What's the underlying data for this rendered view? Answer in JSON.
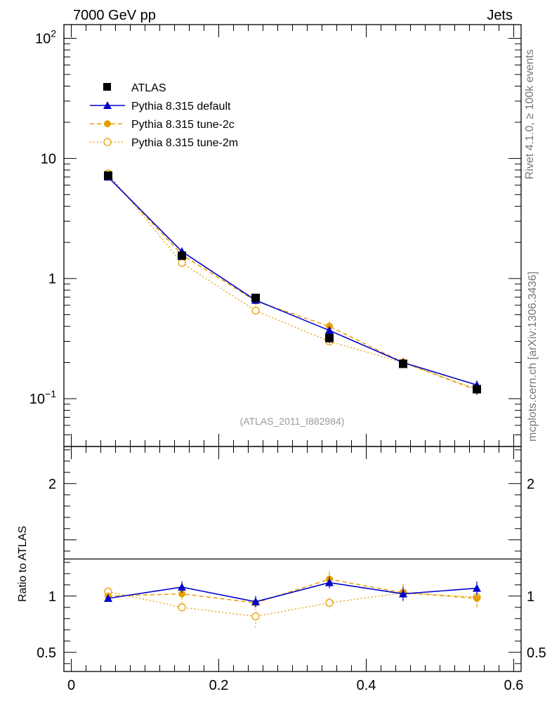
{
  "header": {
    "left_title": "7000 GeV pp",
    "right_title": "Jets"
  },
  "side_labels": {
    "rivet": "Rivet 4.1.0, ≥ 100k events",
    "source": "mcplots.cern.ch [arXiv:1306.3436]"
  },
  "analysis_label": "(ATLAS_2011_I882984)",
  "colors": {
    "atlas": "#000000",
    "default": "#0000cc",
    "tune2c": "#e69f00",
    "tune2m": "#e69f00"
  },
  "chart_data": [
    {
      "type": "line",
      "yscale": "log",
      "xlim": [
        -0.01,
        0.61
      ],
      "ylim": [
        0.04,
        130
      ],
      "yticks": [
        {
          "value": 100,
          "label": "10",
          "sup": "2"
        },
        {
          "value": 10,
          "label": "10",
          "sup": ""
        },
        {
          "value": 1,
          "label": "1",
          "sup": ""
        },
        {
          "value": 0.1,
          "label": "10",
          "sup": "−1"
        }
      ],
      "x": [
        0.05,
        0.15,
        0.25,
        0.35,
        0.45,
        0.55
      ],
      "series": [
        {
          "key": "atlas",
          "name": "ATLAS",
          "values": [
            7.2,
            1.55,
            0.69,
            0.32,
            0.195,
            0.12
          ],
          "errors": [
            0.15,
            0.07,
            0.03,
            0.03,
            0.015,
            0.012
          ]
        },
        {
          "key": "default",
          "name": "Pythia 8.315 default",
          "values": [
            7.0,
            1.68,
            0.66,
            0.37,
            0.2,
            0.13
          ],
          "errors": [
            0.1,
            0.12,
            0.04,
            0.03,
            0.015,
            0.012
          ]
        },
        {
          "key": "tune2c",
          "name": "Pythia 8.315 tune-2c",
          "values": [
            7.1,
            1.58,
            0.65,
            0.4,
            0.2,
            0.118
          ],
          "errors": [
            0.1,
            0.1,
            0.04,
            0.04,
            0.02,
            0.015
          ]
        },
        {
          "key": "tune2m",
          "name": "Pythia 8.315 tune-2m",
          "values": [
            7.5,
            1.35,
            0.54,
            0.3,
            0.2,
            0.12
          ],
          "errors": [
            0.1,
            0.1,
            0.05,
            0.03,
            0.02,
            0.012
          ]
        }
      ]
    },
    {
      "type": "line",
      "ylabel": "Ratio to ATLAS",
      "xlim": [
        -0.01,
        0.61
      ],
      "ylim": [
        0.33,
        2.33
      ],
      "xticks": [
        {
          "value": 0,
          "label": "0"
        },
        {
          "value": 0.2,
          "label": "0.2"
        },
        {
          "value": 0.4,
          "label": "0.4"
        },
        {
          "value": 0.6,
          "label": "0.6"
        }
      ],
      "yticks": [
        {
          "value": 2,
          "label": "2"
        },
        {
          "value": 1,
          "label": "1"
        },
        {
          "value": 0.5,
          "label": "0.5"
        }
      ],
      "x": [
        0.05,
        0.15,
        0.25,
        0.35,
        0.45,
        0.55
      ],
      "series": [
        {
          "key": "default",
          "values": [
            0.98,
            1.08,
            0.95,
            1.12,
            1.02,
            1.07
          ],
          "errors": [
            0.02,
            0.05,
            0.05,
            0.05,
            0.06,
            0.06
          ]
        },
        {
          "key": "tune2c",
          "values": [
            1.0,
            1.02,
            0.94,
            1.15,
            1.03,
            0.98
          ],
          "errors": [
            0.02,
            0.05,
            0.06,
            0.07,
            0.08,
            0.08
          ]
        },
        {
          "key": "tune2m",
          "values": [
            1.04,
            0.9,
            0.82,
            0.94,
            1.03,
            0.99
          ],
          "errors": [
            0.02,
            0.05,
            0.1,
            0.05,
            0.06,
            0.06
          ]
        }
      ]
    }
  ]
}
